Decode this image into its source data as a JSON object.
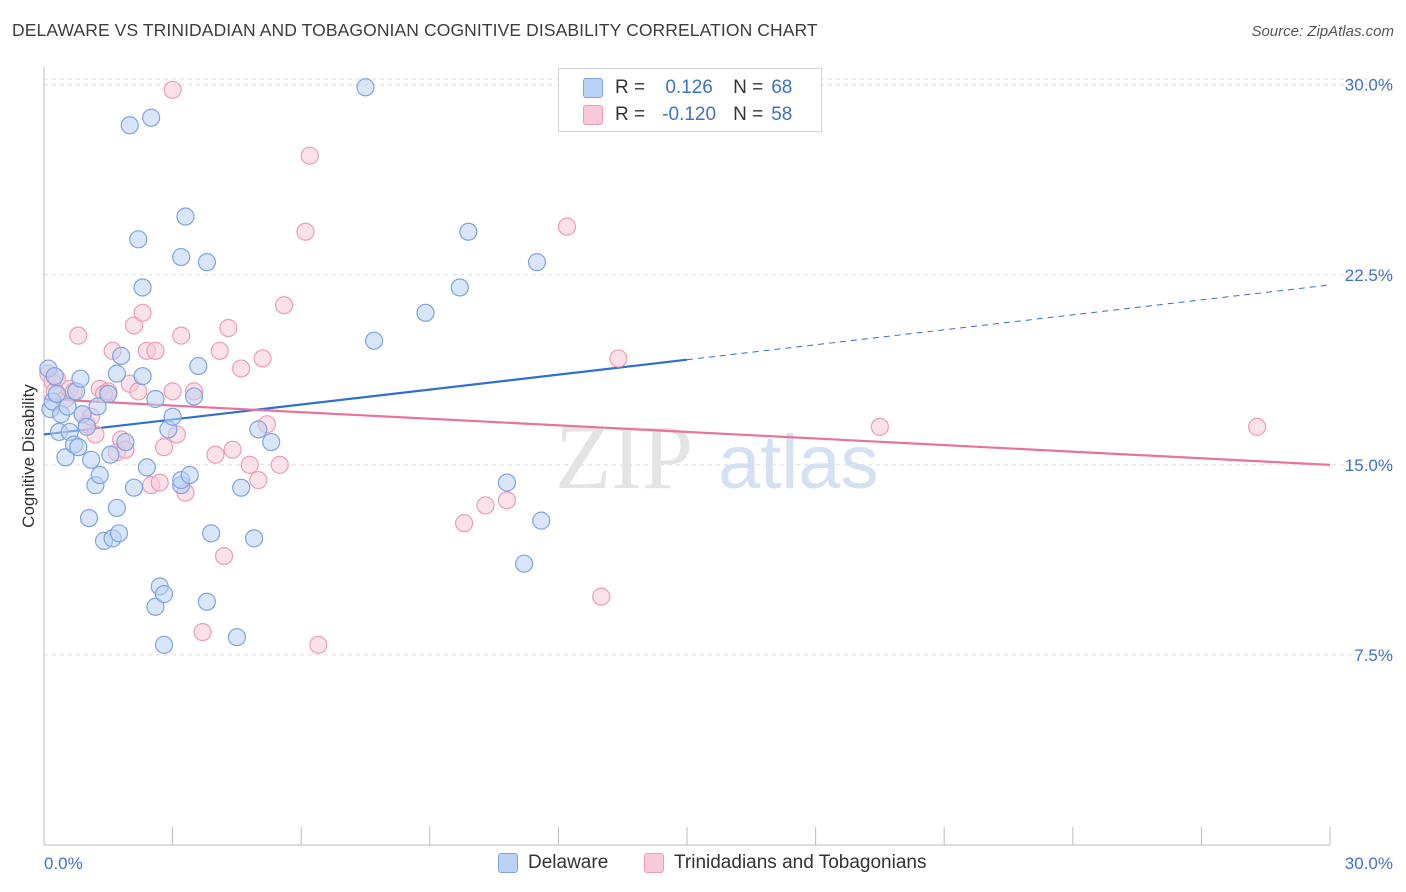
{
  "title": "DELAWARE VS TRINIDADIAN AND TOBAGONIAN COGNITIVE DISABILITY CORRELATION CHART",
  "source": "Source: ZipAtlas.com",
  "legend_top": {
    "rows": [
      {
        "r_label": "R =",
        "r_value": "0.126",
        "n_label": "N =",
        "n_value": "68"
      },
      {
        "r_label": "R =",
        "r_value": "-0.120",
        "n_label": "N =",
        "n_value": "58"
      }
    ]
  },
  "legend_bottom": {
    "items": [
      "Delaware",
      "Trinidadians and Tobagonians"
    ]
  },
  "colors": {
    "blue_fill": "#b9d2f5",
    "blue_stroke": "#7ea4e0",
    "blue_line": "#2f6fcf",
    "pink_fill": "#f8c9d7",
    "pink_stroke": "#ee9cb6",
    "pink_line": "#e8729a",
    "axis_text": "#3e72c8",
    "grid": "#dcdcdc"
  },
  "watermark": {
    "zip": "ZIP",
    "atlas": "atlas"
  },
  "chart_data": {
    "type": "scatter",
    "title": "DELAWARE VS TRINIDADIAN AND TOBAGONIAN COGNITIVE DISABILITY CORRELATION CHART",
    "xlabel": "",
    "ylabel": "Cognitive Disability",
    "xlim": [
      0,
      30
    ],
    "ylim": [
      0,
      30.7
    ],
    "x_tick_labels": [
      "0.0%",
      "30.0%"
    ],
    "y_ticks": [
      7.5,
      15.0,
      22.5,
      30.0
    ],
    "y_tick_labels": [
      "7.5%",
      "15.0%",
      "22.5%",
      "30.0%"
    ],
    "grid": "horizontal dashed",
    "legend_position": "top-center",
    "series": [
      {
        "name": "Delaware",
        "points": [
          [
            0.1,
            18.8
          ],
          [
            0.15,
            17.2
          ],
          [
            0.2,
            17.5
          ],
          [
            0.3,
            17.8
          ],
          [
            0.35,
            16.3
          ],
          [
            0.4,
            17.0
          ],
          [
            0.5,
            15.3
          ],
          [
            0.55,
            17.3
          ],
          [
            0.6,
            16.3
          ],
          [
            0.7,
            15.8
          ],
          [
            0.75,
            17.9
          ],
          [
            0.8,
            15.7
          ],
          [
            0.85,
            18.4
          ],
          [
            0.9,
            17.0
          ],
          [
            1.0,
            16.5
          ],
          [
            1.05,
            12.9
          ],
          [
            1.1,
            15.2
          ],
          [
            1.2,
            14.2
          ],
          [
            1.25,
            17.3
          ],
          [
            1.3,
            14.6
          ],
          [
            1.4,
            12.0
          ],
          [
            1.5,
            17.8
          ],
          [
            1.55,
            15.4
          ],
          [
            1.6,
            12.1
          ],
          [
            1.7,
            18.6
          ],
          [
            1.7,
            13.3
          ],
          [
            1.75,
            12.3
          ],
          [
            1.8,
            19.3
          ],
          [
            1.9,
            15.9
          ],
          [
            2.0,
            28.4
          ],
          [
            2.1,
            14.1
          ],
          [
            2.2,
            23.9
          ],
          [
            2.3,
            22.0
          ],
          [
            2.3,
            18.5
          ],
          [
            2.4,
            14.9
          ],
          [
            2.5,
            28.7
          ],
          [
            2.6,
            17.6
          ],
          [
            2.6,
            9.4
          ],
          [
            2.7,
            10.2
          ],
          [
            2.8,
            9.9
          ],
          [
            2.8,
            7.9
          ],
          [
            2.9,
            16.4
          ],
          [
            3.0,
            16.9
          ],
          [
            3.2,
            14.2
          ],
          [
            3.2,
            14.4
          ],
          [
            3.2,
            23.2
          ],
          [
            3.3,
            24.8
          ],
          [
            3.4,
            14.6
          ],
          [
            3.5,
            17.7
          ],
          [
            3.6,
            18.9
          ],
          [
            3.8,
            23.0
          ],
          [
            3.8,
            9.6
          ],
          [
            3.9,
            12.3
          ],
          [
            4.5,
            8.2
          ],
          [
            4.6,
            14.1
          ],
          [
            4.9,
            12.1
          ],
          [
            5.0,
            16.4
          ],
          [
            5.3,
            15.9
          ],
          [
            7.5,
            29.9
          ],
          [
            7.7,
            19.9
          ],
          [
            8.9,
            21.0
          ],
          [
            9.7,
            22.0
          ],
          [
            9.9,
            24.2
          ],
          [
            10.8,
            14.3
          ],
          [
            11.2,
            11.1
          ],
          [
            11.5,
            23.0
          ],
          [
            11.6,
            12.8
          ],
          [
            0.25,
            18.5
          ]
        ]
      },
      {
        "name": "Trinidadians and Tobagonians",
        "points": [
          [
            0.1,
            18.6
          ],
          [
            0.2,
            18.3
          ],
          [
            0.25,
            17.9
          ],
          [
            0.3,
            18.4
          ],
          [
            0.5,
            17.6
          ],
          [
            0.6,
            18.0
          ],
          [
            0.7,
            17.9
          ],
          [
            0.8,
            20.1
          ],
          [
            0.9,
            17.0
          ],
          [
            1.0,
            16.6
          ],
          [
            1.1,
            16.9
          ],
          [
            1.2,
            16.2
          ],
          [
            1.3,
            18.0
          ],
          [
            1.4,
            17.8
          ],
          [
            1.5,
            17.9
          ],
          [
            1.6,
            19.5
          ],
          [
            1.7,
            15.5
          ],
          [
            1.8,
            16.0
          ],
          [
            1.9,
            15.6
          ],
          [
            2.0,
            18.2
          ],
          [
            2.1,
            20.5
          ],
          [
            2.2,
            17.9
          ],
          [
            2.3,
            21.0
          ],
          [
            2.4,
            19.5
          ],
          [
            2.5,
            14.2
          ],
          [
            2.6,
            19.5
          ],
          [
            2.7,
            14.3
          ],
          [
            2.8,
            15.7
          ],
          [
            3.0,
            17.9
          ],
          [
            3.1,
            16.2
          ],
          [
            3.0,
            29.8
          ],
          [
            3.2,
            20.1
          ],
          [
            3.3,
            13.9
          ],
          [
            3.5,
            17.9
          ],
          [
            3.7,
            8.4
          ],
          [
            4.0,
            15.4
          ],
          [
            4.1,
            19.5
          ],
          [
            4.2,
            11.4
          ],
          [
            4.3,
            20.4
          ],
          [
            4.4,
            15.6
          ],
          [
            4.6,
            18.8
          ],
          [
            4.8,
            15.0
          ],
          [
            5.0,
            14.4
          ],
          [
            5.1,
            19.2
          ],
          [
            5.2,
            16.6
          ],
          [
            5.5,
            15.0
          ],
          [
            5.6,
            21.3
          ],
          [
            6.1,
            24.2
          ],
          [
            6.2,
            27.2
          ],
          [
            6.4,
            7.9
          ],
          [
            9.8,
            12.7
          ],
          [
            10.3,
            13.4
          ],
          [
            10.8,
            13.6
          ],
          [
            12.2,
            24.4
          ],
          [
            13.0,
            9.8
          ],
          [
            13.4,
            19.2
          ],
          [
            19.5,
            16.5
          ],
          [
            28.3,
            16.5
          ]
        ]
      }
    ],
    "trend_lines": [
      {
        "series": "Delaware",
        "x": [
          0,
          30
        ],
        "y": [
          16.2,
          22.1
        ],
        "solid_until_x": 15.0
      },
      {
        "series": "Trinidadians and Tobagonians",
        "x": [
          0,
          30
        ],
        "y": [
          17.6,
          15.0
        ],
        "solid_until_x": 30
      }
    ]
  }
}
